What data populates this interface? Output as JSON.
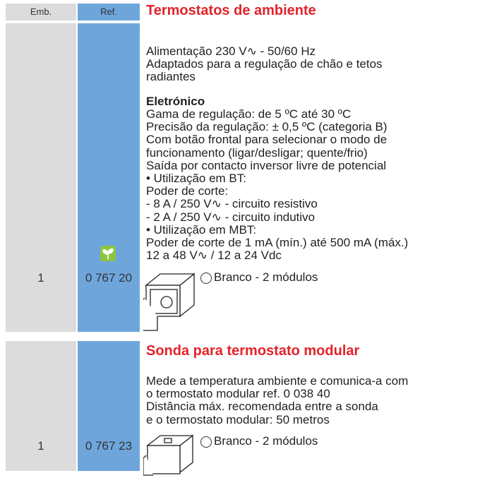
{
  "header": {
    "emb_label": "Emb.",
    "ref_label": "Ref."
  },
  "products": [
    {
      "title": "Termostatos de ambiente",
      "emb": "1",
      "ref": "0 767 20",
      "intro": [
        "Alimentação 230 V∿ - 50/60 Hz",
        "Adaptados para a regulação de chão e tetos",
        "radiantes"
      ],
      "subheading": "Eletrónico",
      "details": [
        "Gama de regulação: de 5 ºC até 30 ºC",
        "Precisão da regulação: ± 0,5 ºC (categoria B)",
        "Com botão frontal para selecionar o modo de",
        "funcionamento (ligar/desligar; quente/frio)",
        "Saída por contacto inversor livre de potencial",
        "• Utilização em BT:",
        "Poder de corte:",
        "- 8 A / 250 V∿ - circuito resistivo",
        "- 2 A / 250 V∿ - circuito indutivo",
        "• Utilização em MBT:",
        "Poder de corte de 1 mA (mín.) até 500 mA (máx.)",
        "12 a 48 V∿ / 12 a 24 Vdc"
      ],
      "variant": "Branco - 2 módulos"
    },
    {
      "title": "Sonda para termostato modular",
      "emb": "1",
      "ref": "0 767 23",
      "intro": [
        "Mede a temperatura ambiente e comunica-a com",
        "o termostato modular ref. 0 038 40",
        "Distância máx. recomendada entre a sonda",
        "e o termostato modular: 50 metros"
      ],
      "variant": "Branco - 2 módulos"
    }
  ]
}
